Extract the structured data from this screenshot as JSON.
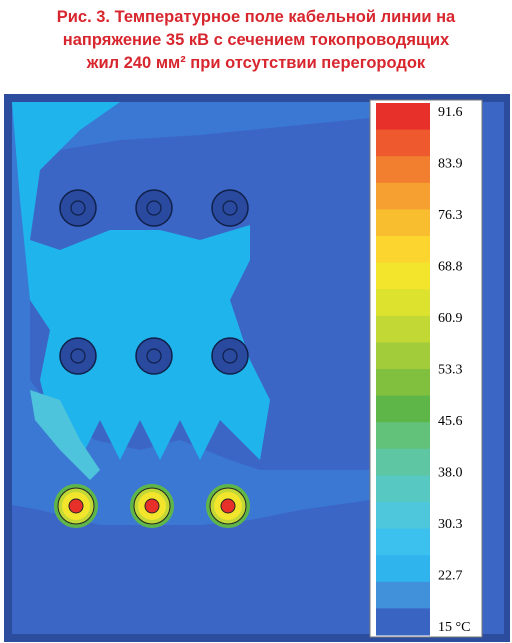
{
  "title_lines": [
    "Рис. 3. Температурное поле кабельной линии на",
    "напряжение 35 кВ с сечением токопроводящих",
    "жил 240 мм² при отсутствии перегородок"
  ],
  "colorbar": {
    "labels": [
      "91.6",
      "83.9",
      "76.3",
      "68.8",
      "60.9",
      "53.3",
      "45.6",
      "38.0",
      "30.3",
      "22.7",
      "15 °C"
    ],
    "colors": [
      "#e8302a",
      "#ee5a2e",
      "#f27e30",
      "#f6a032",
      "#f9bd30",
      "#fcd62e",
      "#f3e52c",
      "#dde22e",
      "#c2d834",
      "#a3cc3a",
      "#80c03e",
      "#5fb648",
      "#62c27a",
      "#5ec6a2",
      "#58c8c2",
      "#4ec6dc",
      "#3cc0ee",
      "#2fb4ee",
      "#4090da",
      "#3a64c2"
    ]
  }
}
